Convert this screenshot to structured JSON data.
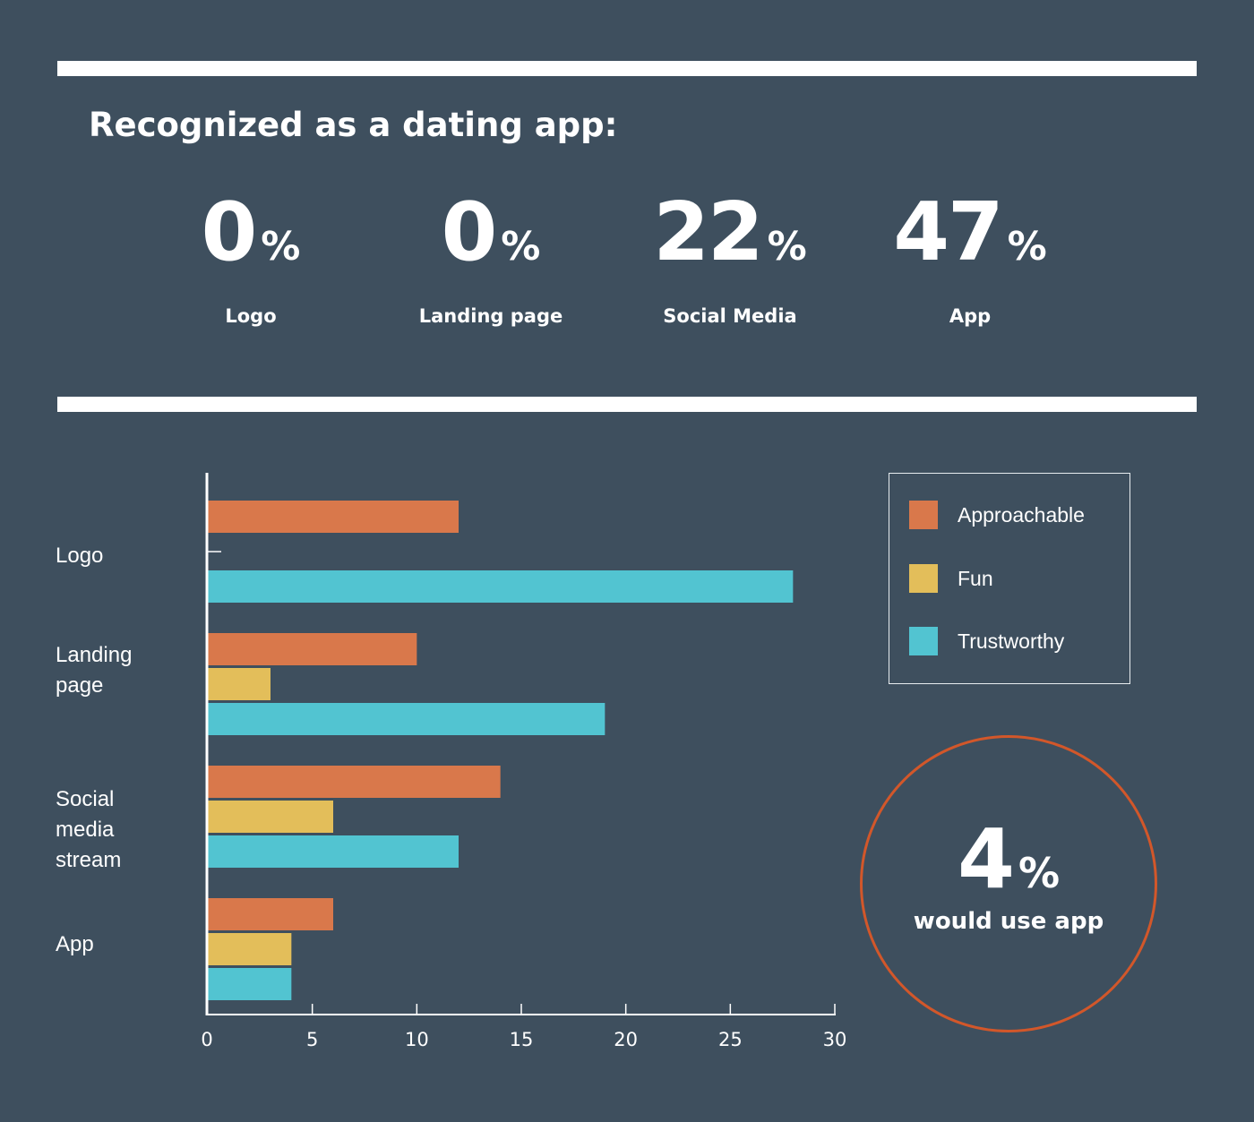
{
  "header": {
    "title": "Recognized as a dating app:"
  },
  "stats": [
    {
      "value": "0",
      "unit": "%",
      "label": "Logo"
    },
    {
      "value": "0",
      "unit": "%",
      "label": "Landing page"
    },
    {
      "value": "22",
      "unit": "%",
      "label": "Social Media"
    },
    {
      "value": "47",
      "unit": "%",
      "label": "App"
    }
  ],
  "chart_data": {
    "type": "bar",
    "orientation": "horizontal",
    "categories": [
      "Logo",
      "Landing\npage",
      "Social\nmedia\nstream",
      "App"
    ],
    "series": [
      {
        "name": "Approachable",
        "color": "#d9784b",
        "values": [
          12,
          10,
          14,
          6
        ]
      },
      {
        "name": "Fun",
        "color": "#e3be5a",
        "values": [
          0,
          3,
          6,
          4
        ]
      },
      {
        "name": "Trustworthy",
        "color": "#52c4d1",
        "values": [
          28,
          19,
          12,
          4
        ]
      }
    ],
    "xlim": [
      0,
      30
    ],
    "xticks": [
      "0",
      "5",
      "10",
      "15",
      "20",
      "25",
      "30"
    ],
    "legend_position": "right"
  },
  "callout": {
    "value": "4",
    "unit": "%",
    "text": "would use app",
    "color": "#d2572a"
  }
}
